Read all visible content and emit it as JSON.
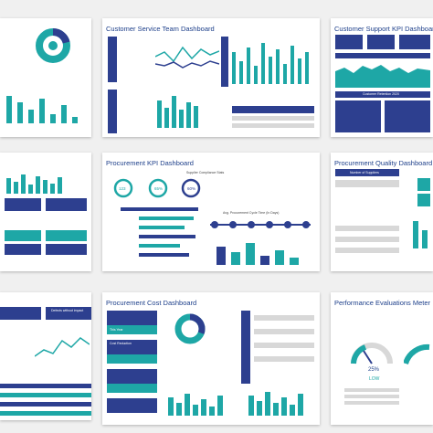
{
  "cards": {
    "service": {
      "title": "Customer Service Team Dashboard"
    },
    "support": {
      "title": "Customer Support KPI Dashboard"
    },
    "procurement_kpi": {
      "title": "Procurement KPI Dashboard"
    },
    "procurement_quality": {
      "title": "Procurement Quality Dashboard"
    },
    "procurement_cost": {
      "title": "Procurement Cost Dashboard"
    },
    "performance": {
      "title": "Performance Evaluations Meter"
    }
  },
  "labels": {
    "gauge_left_pct": "25%",
    "gauge_left_text": "LOW",
    "kpi_circles": [
      "123",
      "65%",
      "60%"
    ],
    "quality_header": "Number of Suppliers",
    "this_year": "This Year",
    "supplier_compliance": "Supplier Compliance Stats",
    "avg_procurement_cycle": "Avg. Procurement Cycle Time (In Days)",
    "customer_retention": "Customer Retention 2020",
    "cost_reduction": "Cost Reduction",
    "defects": "Defects without impact"
  },
  "colors": {
    "navy": "#2d3f8f",
    "teal": "#1ea7a6",
    "title_blue": "#1d3f8a"
  }
}
